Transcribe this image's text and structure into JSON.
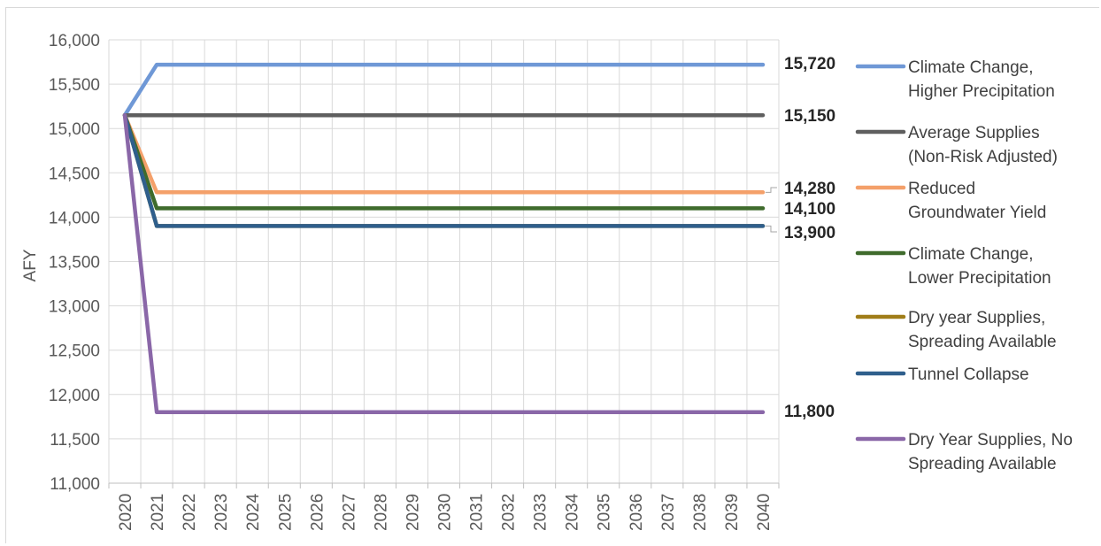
{
  "chart_data": {
    "type": "line",
    "title": "",
    "xlabel": "",
    "ylabel": "AFY",
    "ylim": [
      11000,
      16000
    ],
    "yticks": [
      "11,000",
      "11,500",
      "12,000",
      "12,500",
      "13,000",
      "13,500",
      "14,000",
      "14,500",
      "15,000",
      "15,500",
      "16,000"
    ],
    "x": [
      "2020",
      "2021",
      "2022",
      "2023",
      "2024",
      "2025",
      "2026",
      "2027",
      "2028",
      "2029",
      "2030",
      "2031",
      "2032",
      "2033",
      "2034",
      "2035",
      "2036",
      "2037",
      "2038",
      "2039",
      "2040"
    ],
    "grid": true,
    "legend_position": "right",
    "series": [
      {
        "name": "Climate Change, Higher Precipitation",
        "legend_lines": [
          "Climate Change,",
          "Higher Precipitation"
        ],
        "color": "#6f98d6",
        "start": 15150,
        "value": 15720,
        "end_label": "15,720"
      },
      {
        "name": "Average Supplies (Non-Risk Adjusted)",
        "legend_lines": [
          "Average Supplies",
          "(Non-Risk Adjusted)"
        ],
        "color": "#5f5f5f",
        "start": 15150,
        "value": 15150,
        "end_label": "15,150"
      },
      {
        "name": "Reduced Groundwater Yield",
        "legend_lines": [
          "Reduced",
          "Groundwater Yield"
        ],
        "color": "#f4a06a",
        "start": 15150,
        "value": 14280,
        "end_label": "14,280"
      },
      {
        "name": "Climate Change, Lower Precipitation",
        "legend_lines": [
          "Climate Change,",
          "Lower Precipitation"
        ],
        "color": "#3f6b2c",
        "start": 15150,
        "value": 14100,
        "end_label": "14,100"
      },
      {
        "name": "Dry year Supplies, Spreading Available",
        "legend_lines": [
          "Dry year Supplies,",
          "Spreading Available"
        ],
        "color": "#a07d18",
        "start": 15150,
        "value": 13900,
        "end_label": ""
      },
      {
        "name": "Tunnel Collapse",
        "legend_lines": [
          "Tunnel Collapse"
        ],
        "color": "#2f5f8c",
        "start": 15150,
        "value": 13900,
        "end_label": "13,900"
      },
      {
        "name": "Dry Year Supplies, No Spreading Available",
        "legend_lines": [
          "Dry Year Supplies, No",
          "Spreading Available"
        ],
        "color": "#8a67a8",
        "start": 15150,
        "value": 11800,
        "end_label": "11,800"
      }
    ]
  }
}
